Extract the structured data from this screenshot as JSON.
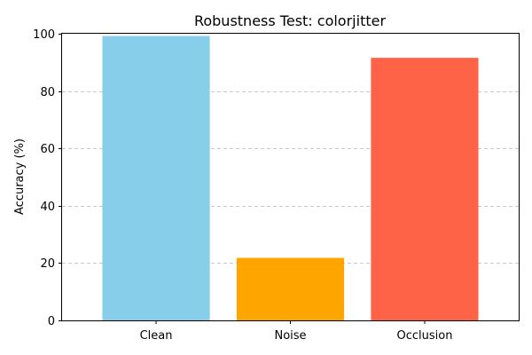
{
  "chart_data": {
    "type": "bar",
    "title": "Robustness Test: colorjitter",
    "xlabel": "",
    "ylabel": "Accuracy (%)",
    "categories": [
      "Clean",
      "Noise",
      "Occlusion"
    ],
    "values": [
      99.2,
      21.8,
      91.6
    ],
    "colors": [
      "#87ceeb",
      "#ffa500",
      "#ff6347"
    ],
    "ylim": [
      0,
      100
    ],
    "yticks": [
      0,
      20,
      40,
      60,
      80,
      100
    ],
    "grid": "y-dashed"
  }
}
